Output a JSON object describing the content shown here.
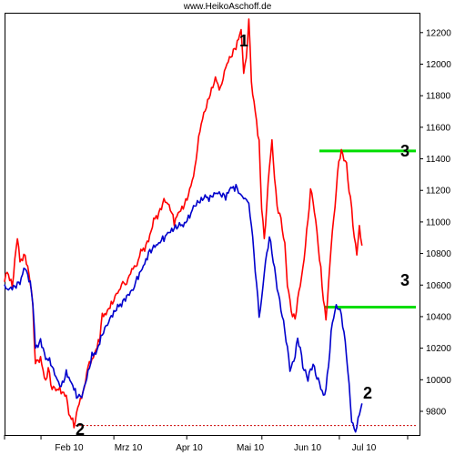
{
  "watermark": "www.HeikoAschoff.de",
  "chart_data": {
    "type": "line",
    "x_ticks": [
      "Feb 10",
      "Mrz 10",
      "Apr 10",
      "Mai 10",
      "Jun 10",
      "Jul 10"
    ],
    "y_ticks": [
      9800,
      10000,
      10200,
      10400,
      10600,
      10800,
      11000,
      11200,
      11400,
      11600,
      11800,
      12000,
      12200
    ],
    "ylim": [
      9650,
      12320
    ],
    "n_points": 140,
    "series": [
      {
        "color": "#ff0000",
        "anchors": [
          [
            0,
            10620
          ],
          [
            1,
            10700
          ],
          [
            3,
            10600
          ],
          [
            5,
            10900
          ],
          [
            6,
            10760
          ],
          [
            8,
            10800
          ],
          [
            10,
            10620
          ],
          [
            11,
            10480
          ],
          [
            12,
            10100
          ],
          [
            14,
            10120
          ],
          [
            16,
            10000
          ],
          [
            17,
            10080
          ],
          [
            18,
            9970
          ],
          [
            20,
            9950
          ],
          [
            22,
            9920
          ],
          [
            24,
            9880
          ],
          [
            25,
            9800
          ],
          [
            27,
            9710
          ],
          [
            30,
            9900
          ],
          [
            33,
            10100
          ],
          [
            35,
            10180
          ],
          [
            37,
            10260
          ],
          [
            38,
            10400
          ],
          [
            40,
            10450
          ],
          [
            42,
            10500
          ],
          [
            44,
            10550
          ],
          [
            47,
            10620
          ],
          [
            50,
            10700
          ],
          [
            53,
            10800
          ],
          [
            55,
            10850
          ],
          [
            57,
            10950
          ],
          [
            58,
            11000
          ],
          [
            60,
            11050
          ],
          [
            62,
            11150
          ],
          [
            64,
            11120
          ],
          [
            66,
            11000
          ],
          [
            68,
            11050
          ],
          [
            70,
            11100
          ],
          [
            72,
            11200
          ],
          [
            74,
            11350
          ],
          [
            76,
            11600
          ],
          [
            78,
            11700
          ],
          [
            80,
            11800
          ],
          [
            82,
            11900
          ],
          [
            84,
            11850
          ],
          [
            86,
            12000
          ],
          [
            88,
            12050
          ],
          [
            90,
            12100
          ],
          [
            92,
            12200
          ],
          [
            93,
            11950
          ],
          [
            94,
            12020
          ],
          [
            95,
            12300
          ],
          [
            96,
            11900
          ],
          [
            97,
            11750
          ],
          [
            99,
            11500
          ],
          [
            100,
            11100
          ],
          [
            101,
            10900
          ],
          [
            102,
            11100
          ],
          [
            103,
            11350
          ],
          [
            104,
            11500
          ],
          [
            105,
            11300
          ],
          [
            106,
            11100
          ],
          [
            107,
            11050
          ],
          [
            108,
            10950
          ],
          [
            109,
            10850
          ],
          [
            110,
            10620
          ],
          [
            111,
            10500
          ],
          [
            112,
            10400
          ],
          [
            113,
            10380
          ],
          [
            114,
            10500
          ],
          [
            115,
            10620
          ],
          [
            116,
            10700
          ],
          [
            117,
            10850
          ],
          [
            118,
            11000
          ],
          [
            119,
            11200
          ],
          [
            120,
            11150
          ],
          [
            121,
            11000
          ],
          [
            123,
            10700
          ],
          [
            124,
            10500
          ],
          [
            125,
            10400
          ],
          [
            126,
            10600
          ],
          [
            127,
            10850
          ],
          [
            128,
            11000
          ],
          [
            129,
            11200
          ],
          [
            130,
            11400
          ],
          [
            131,
            11450
          ],
          [
            132,
            11400
          ],
          [
            133,
            11350
          ],
          [
            134,
            11200
          ],
          [
            135,
            11100
          ],
          [
            136,
            10900
          ],
          [
            137,
            10800
          ],
          [
            138,
            10950
          ],
          [
            139,
            10850
          ]
        ],
        "note": ""
      },
      {
        "color": "#0000cc",
        "anchors": [
          [
            0,
            10580
          ],
          [
            2,
            10590
          ],
          [
            4,
            10600
          ],
          [
            6,
            10620
          ],
          [
            8,
            10700
          ],
          [
            10,
            10600
          ],
          [
            11,
            10500
          ],
          [
            12,
            10200
          ],
          [
            14,
            10260
          ],
          [
            16,
            10150
          ],
          [
            18,
            10100
          ],
          [
            20,
            10000
          ],
          [
            22,
            9950
          ],
          [
            24,
            10050
          ],
          [
            26,
            10000
          ],
          [
            28,
            9900
          ],
          [
            30,
            9880
          ],
          [
            32,
            10000
          ],
          [
            34,
            10150
          ],
          [
            36,
            10200
          ],
          [
            38,
            10300
          ],
          [
            40,
            10350
          ],
          [
            42,
            10400
          ],
          [
            44,
            10450
          ],
          [
            46,
            10500
          ],
          [
            48,
            10550
          ],
          [
            50,
            10580
          ],
          [
            52,
            10650
          ],
          [
            54,
            10700
          ],
          [
            56,
            10800
          ],
          [
            58,
            10850
          ],
          [
            60,
            10880
          ],
          [
            62,
            10900
          ],
          [
            64,
            10920
          ],
          [
            66,
            10950
          ],
          [
            68,
            10980
          ],
          [
            70,
            11000
          ],
          [
            72,
            11050
          ],
          [
            74,
            11100
          ],
          [
            76,
            11120
          ],
          [
            78,
            11150
          ],
          [
            80,
            11160
          ],
          [
            82,
            11200
          ],
          [
            84,
            11180
          ],
          [
            86,
            11150
          ],
          [
            88,
            11200
          ],
          [
            90,
            11220
          ],
          [
            92,
            11180
          ],
          [
            94,
            11150
          ],
          [
            95,
            11100
          ],
          [
            96,
            11000
          ],
          [
            97,
            10800
          ],
          [
            98,
            10600
          ],
          [
            99,
            10400
          ],
          [
            100,
            10500
          ],
          [
            101,
            10700
          ],
          [
            102,
            10800
          ],
          [
            103,
            10900
          ],
          [
            104,
            10800
          ],
          [
            105,
            10700
          ],
          [
            106,
            10600
          ],
          [
            107,
            10500
          ],
          [
            108,
            10400
          ],
          [
            109,
            10300
          ],
          [
            110,
            10200
          ],
          [
            111,
            10080
          ],
          [
            112,
            10100
          ],
          [
            113,
            10150
          ],
          [
            114,
            10250
          ],
          [
            115,
            10200
          ],
          [
            116,
            10100
          ],
          [
            117,
            10050
          ],
          [
            118,
            10000
          ],
          [
            119,
            10050
          ],
          [
            120,
            10100
          ],
          [
            121,
            10050
          ],
          [
            122,
            10000
          ],
          [
            123,
            9950
          ],
          [
            124,
            9880
          ],
          [
            125,
            9950
          ],
          [
            126,
            10100
          ],
          [
            127,
            10300
          ],
          [
            128,
            10400
          ],
          [
            129,
            10450
          ],
          [
            130,
            10460
          ],
          [
            131,
            10420
          ],
          [
            132,
            10300
          ],
          [
            133,
            10150
          ],
          [
            134,
            9950
          ],
          [
            135,
            9750
          ],
          [
            136,
            9690
          ],
          [
            137,
            9700
          ],
          [
            138,
            9780
          ],
          [
            139,
            9850
          ]
        ],
        "note": ""
      }
    ],
    "annotations": [
      {
        "text": "1",
        "x_index": 99,
        "y": 12150
      },
      {
        "text": "2",
        "x_index": 32,
        "y": 9680
      },
      {
        "text": "2",
        "x_index": 150,
        "y": 9920
      },
      {
        "text": "3",
        "x_index": 167,
        "y": 11520
      },
      {
        "text": "3",
        "x_index": 167,
        "y": 10530
      }
    ],
    "lines": [
      {
        "type": "h",
        "color": "#00dd00",
        "y": 11450,
        "from_index": 132,
        "to_index": 171
      },
      {
        "type": "h",
        "color": "#00dd00",
        "y": 10460,
        "from_index": 136,
        "to_index": 171
      },
      {
        "type": "h-dotted",
        "color": "#cc0000",
        "y": 9710,
        "from_index": 27,
        "to_index": 172
      }
    ]
  }
}
